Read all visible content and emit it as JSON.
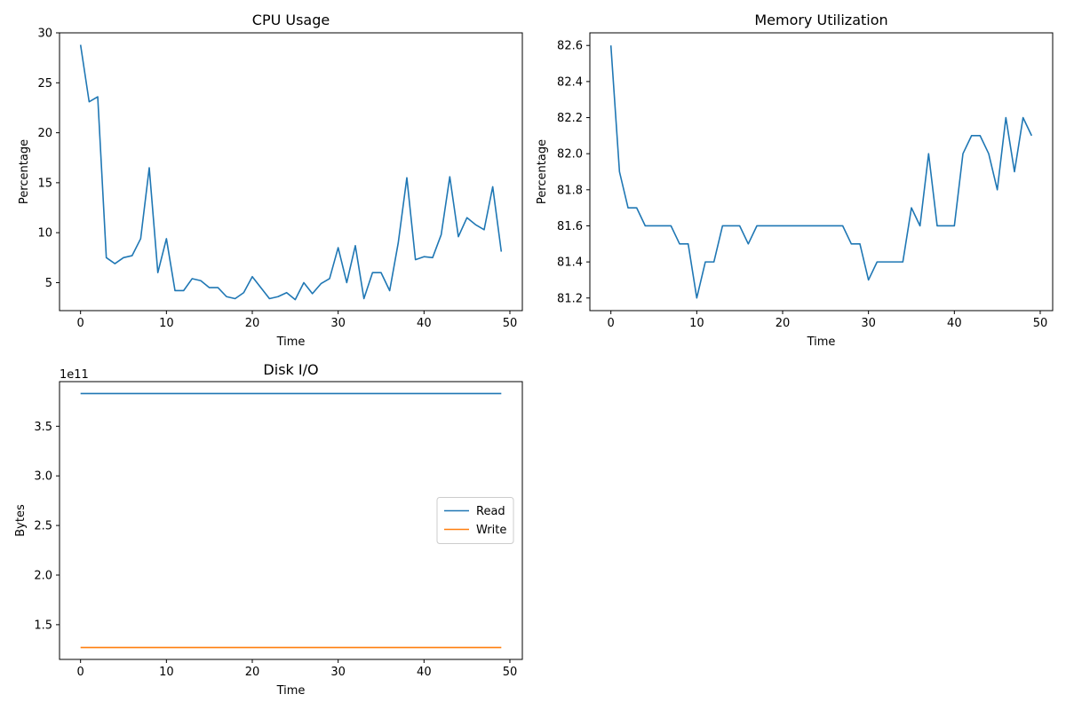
{
  "figure_background": "#ffffff",
  "chart_data": [
    {
      "id": "cpu",
      "type": "line",
      "title": "CPU Usage",
      "xlabel": "Time",
      "ylabel": "Percentage",
      "xlim": [
        -2.45,
        51.45
      ],
      "ylim": [
        2.2,
        30.0
      ],
      "xticks": [
        0,
        10,
        20,
        30,
        40,
        50
      ],
      "xtick_labels": [
        "0",
        "10",
        "20",
        "30",
        "40",
        "50"
      ],
      "yticks": [
        5,
        10,
        15,
        20,
        25,
        30
      ],
      "ytick_labels": [
        "5",
        "10",
        "15",
        "20",
        "25",
        "30"
      ],
      "grid": false,
      "series": [
        {
          "color": "#1f77b4",
          "x": [
            0,
            1,
            2,
            3,
            4,
            5,
            6,
            7,
            8,
            9,
            10,
            11,
            12,
            13,
            14,
            15,
            16,
            17,
            18,
            19,
            20,
            21,
            22,
            23,
            24,
            25,
            26,
            27,
            28,
            29,
            30,
            31,
            32,
            33,
            34,
            35,
            36,
            37,
            38,
            39,
            40,
            41,
            42,
            43,
            44,
            45,
            46,
            47,
            48,
            49
          ],
          "y": [
            28.8,
            23.1,
            23.6,
            7.5,
            6.9,
            7.5,
            7.7,
            9.4,
            16.5,
            6.0,
            9.4,
            4.2,
            4.2,
            5.4,
            5.2,
            4.5,
            4.5,
            3.6,
            3.4,
            4.0,
            5.6,
            4.5,
            3.4,
            3.6,
            4.0,
            3.3,
            5.0,
            3.9,
            4.9,
            5.4,
            8.5,
            5.0,
            8.7,
            3.4,
            6.0,
            6.0,
            4.2,
            9.0,
            15.5,
            7.3,
            7.6,
            7.5,
            9.8,
            15.6,
            9.6,
            11.5,
            10.8,
            10.3,
            14.6,
            8.1
          ]
        }
      ]
    },
    {
      "id": "memory",
      "type": "line",
      "title": "Memory Utilization",
      "xlabel": "Time",
      "ylabel": "Percentage",
      "xlim": [
        -2.45,
        51.45
      ],
      "ylim": [
        81.13,
        82.67
      ],
      "xticks": [
        0,
        10,
        20,
        30,
        40,
        50
      ],
      "xtick_labels": [
        "0",
        "10",
        "20",
        "30",
        "40",
        "50"
      ],
      "yticks": [
        81.2,
        81.4,
        81.6,
        81.8,
        82.0,
        82.2,
        82.4,
        82.6
      ],
      "ytick_labels": [
        "81.2",
        "81.4",
        "81.6",
        "81.8",
        "82.0",
        "82.2",
        "82.4",
        "82.6"
      ],
      "grid": false,
      "series": [
        {
          "color": "#1f77b4",
          "x": [
            0,
            1,
            2,
            3,
            4,
            5,
            6,
            7,
            8,
            9,
            10,
            11,
            12,
            13,
            14,
            15,
            16,
            17,
            18,
            19,
            20,
            21,
            22,
            23,
            24,
            25,
            26,
            27,
            28,
            29,
            30,
            31,
            32,
            33,
            34,
            35,
            36,
            37,
            38,
            39,
            40,
            41,
            42,
            43,
            44,
            45,
            46,
            47,
            48,
            49
          ],
          "y": [
            82.6,
            81.9,
            81.7,
            81.7,
            81.6,
            81.6,
            81.6,
            81.6,
            81.5,
            81.5,
            81.2,
            81.4,
            81.4,
            81.6,
            81.6,
            81.6,
            81.5,
            81.6,
            81.6,
            81.6,
            81.6,
            81.6,
            81.6,
            81.6,
            81.6,
            81.6,
            81.6,
            81.6,
            81.5,
            81.5,
            81.3,
            81.4,
            81.4,
            81.4,
            81.4,
            81.7,
            81.6,
            82.0,
            81.6,
            81.6,
            81.6,
            82.0,
            82.1,
            82.1,
            82.0,
            81.8,
            82.2,
            81.9,
            82.2,
            82.1
          ]
        }
      ]
    },
    {
      "id": "disk",
      "type": "line",
      "title": "Disk I/O",
      "xlabel": "Time",
      "ylabel": "Bytes",
      "offset_text": "1e11",
      "xlim": [
        -2.45,
        51.45
      ],
      "ylim": [
        1.15,
        3.95
      ],
      "xticks": [
        0,
        10,
        20,
        30,
        40,
        50
      ],
      "xtick_labels": [
        "0",
        "10",
        "20",
        "30",
        "40",
        "50"
      ],
      "yticks": [
        1.5,
        2.0,
        2.5,
        3.0,
        3.5
      ],
      "ytick_labels": [
        "1.5",
        "2.0",
        "2.5",
        "3.0",
        "3.5"
      ],
      "grid": false,
      "legend_location": "center-right",
      "series": [
        {
          "name": "Read",
          "color": "#1f77b4",
          "x": [
            0,
            49
          ],
          "y": [
            3.83,
            3.83
          ]
        },
        {
          "name": "Write",
          "color": "#ff7f0e",
          "x": [
            0,
            49
          ],
          "y": [
            1.27,
            1.27
          ]
        }
      ]
    }
  ]
}
